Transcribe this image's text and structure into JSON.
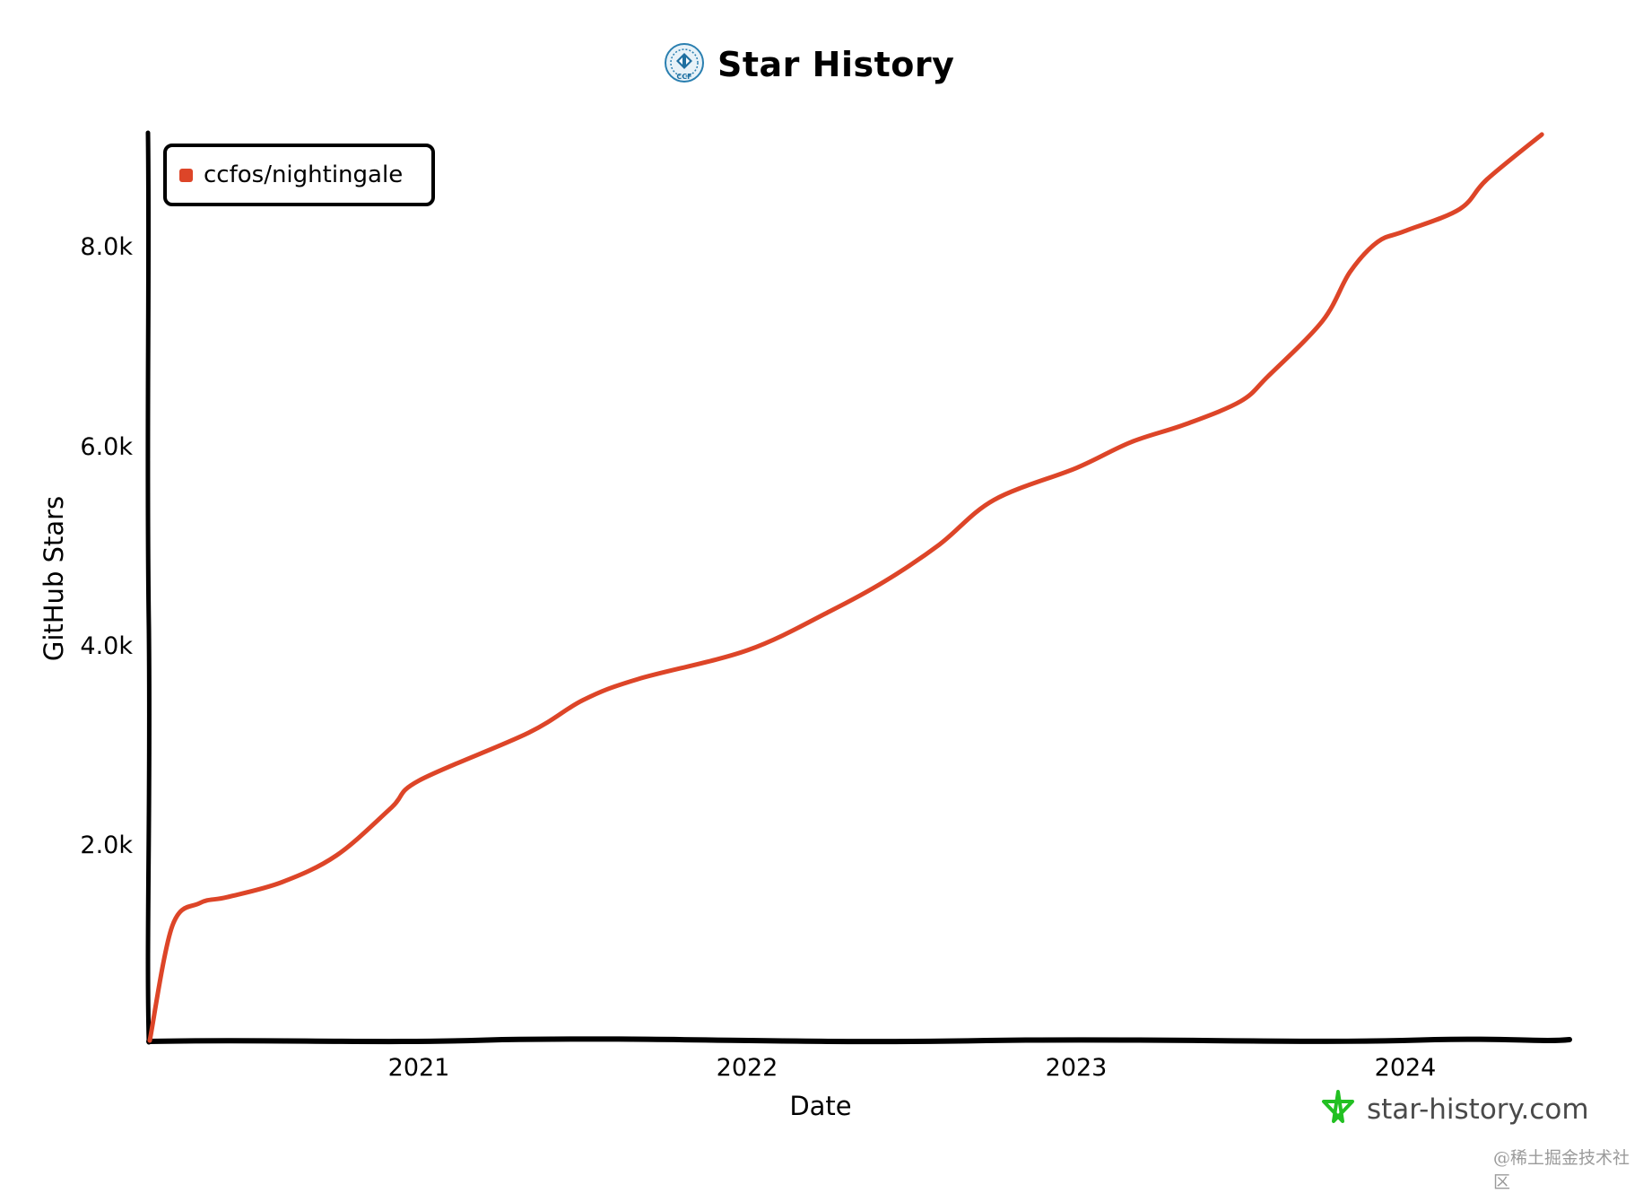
{
  "header": {
    "logo_icon": "ccf-logo-icon",
    "title": "Star History"
  },
  "legend": {
    "items": [
      {
        "label": "ccfos/nightingale",
        "color": "#dd4528"
      }
    ]
  },
  "axes": {
    "y_title": "GitHub Stars",
    "x_title": "Date",
    "y_ticks": [
      "2.0k",
      "4.0k",
      "6.0k",
      "8.0k"
    ],
    "x_ticks": [
      "2021",
      "2022",
      "2023",
      "2024"
    ]
  },
  "branding": {
    "icon": "star-icon",
    "icon_color": "#22c022",
    "text": "star-history.com"
  },
  "watermark": "@稀土掘金技术社区",
  "chart_data": {
    "type": "line",
    "title": "Star History",
    "xlabel": "Date",
    "ylabel": "GitHub Stars",
    "ylim": [
      0,
      9200
    ],
    "x_ticks": [
      "2021",
      "2022",
      "2023",
      "2024"
    ],
    "y_ticks": [
      2000,
      4000,
      6000,
      8000
    ],
    "grid": false,
    "legend_position": "top-left",
    "series": [
      {
        "name": "ccfos/nightingale",
        "color": "#dd4528",
        "x": [
          "2020-03",
          "2020-04",
          "2020-05",
          "2020-06",
          "2020-08",
          "2020-10",
          "2020-12",
          "2021-01",
          "2021-05",
          "2021-07",
          "2021-09",
          "2022-01",
          "2022-04",
          "2022-06",
          "2022-08",
          "2022-10",
          "2023-01",
          "2023-03",
          "2023-05",
          "2023-07",
          "2023-08",
          "2023-10",
          "2023-11",
          "2023-12",
          "2024-01",
          "2024-03",
          "2024-04",
          "2024-06"
        ],
        "values": [
          0,
          1150,
          1380,
          1440,
          1590,
          1860,
          2340,
          2610,
          3090,
          3420,
          3630,
          3920,
          4310,
          4610,
          4980,
          5430,
          5750,
          6010,
          6190,
          6420,
          6670,
          7230,
          7720,
          8020,
          8130,
          8350,
          8650,
          9100
        ]
      }
    ]
  }
}
